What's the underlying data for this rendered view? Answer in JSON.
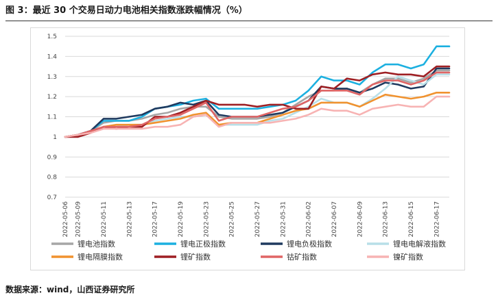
{
  "figure": {
    "title": "图 3：最近 30 个交易日动力电池相关指数涨跌幅情况（%）",
    "source": "数据来源：wind，山西证券研究所"
  },
  "chart_data": {
    "type": "line",
    "title": "",
    "xlabel": "",
    "ylabel": "",
    "ylim": [
      0.7,
      1.5
    ],
    "yticks": [
      "0.7",
      "0.8",
      "0.9",
      "1",
      "1.1",
      "1.2",
      "1.3",
      "1.4",
      "1.5"
    ],
    "grid": true,
    "legend_position": "bottom",
    "x": [
      "2022-05-06",
      "2022-05-09",
      "2022-05-10",
      "2022-05-11",
      "2022-05-12",
      "2022-05-13",
      "2022-05-16",
      "2022-05-17",
      "2022-05-18",
      "2022-05-19",
      "2022-05-20",
      "2022-05-23",
      "2022-05-24",
      "2022-05-25",
      "2022-05-26",
      "2022-05-27",
      "2022-05-30",
      "2022-05-31",
      "2022-06-01",
      "2022-06-02",
      "2022-06-06",
      "2022-06-07",
      "2022-06-08",
      "2022-06-09",
      "2022-06-10",
      "2022-06-13",
      "2022-06-14",
      "2022-06-15",
      "2022-06-16",
      "2022-06-17",
      "2022-06-20"
    ],
    "x_tick_labels": [
      "2022-05-06",
      "2022-05-09",
      "2022-05-11",
      "2022-05-13",
      "2022-05-17",
      "2022-05-19",
      "2022-05-23",
      "2022-05-25",
      "2022-05-27",
      "2022-05-31",
      "2022-06-02",
      "2022-06-07",
      "2022-06-09",
      "2022-06-13",
      "2022-06-15",
      "2022-06-17"
    ],
    "series": [
      {
        "name": "锂电池指数",
        "color": "#a6a6a6",
        "values": [
          1.0,
          1.01,
          1.03,
          1.07,
          1.08,
          1.08,
          1.09,
          1.11,
          1.12,
          1.14,
          1.15,
          1.15,
          1.1,
          1.09,
          1.09,
          1.09,
          1.1,
          1.12,
          1.16,
          1.2,
          1.23,
          1.23,
          1.24,
          1.22,
          1.26,
          1.29,
          1.29,
          1.27,
          1.29,
          1.33,
          1.33
        ]
      },
      {
        "name": "锂电正极指数",
        "color": "#1cb0e0",
        "values": [
          1.0,
          1.01,
          1.03,
          1.08,
          1.08,
          1.08,
          1.1,
          1.14,
          1.15,
          1.16,
          1.18,
          1.19,
          1.14,
          1.14,
          1.14,
          1.14,
          1.15,
          1.16,
          1.18,
          1.23,
          1.3,
          1.28,
          1.28,
          1.26,
          1.32,
          1.36,
          1.36,
          1.34,
          1.36,
          1.45,
          1.45
        ]
      },
      {
        "name": "锂电负极指数",
        "color": "#1f3a5f",
        "values": [
          1.0,
          1.01,
          1.03,
          1.09,
          1.09,
          1.1,
          1.11,
          1.14,
          1.15,
          1.17,
          1.16,
          1.18,
          1.11,
          1.1,
          1.1,
          1.1,
          1.11,
          1.12,
          1.15,
          1.18,
          1.25,
          1.24,
          1.24,
          1.22,
          1.24,
          1.27,
          1.26,
          1.24,
          1.25,
          1.34,
          1.34
        ]
      },
      {
        "name": "锂电电解液指数",
        "color": "#b8dfe8",
        "values": [
          1.0,
          1.01,
          1.02,
          1.05,
          1.05,
          1.06,
          1.06,
          1.08,
          1.09,
          1.1,
          1.1,
          1.11,
          1.06,
          1.06,
          1.06,
          1.06,
          1.08,
          1.09,
          1.12,
          1.15,
          1.19,
          1.17,
          1.17,
          1.15,
          1.19,
          1.24,
          1.3,
          1.28,
          1.26,
          1.31,
          1.31
        ]
      },
      {
        "name": "锂电隔膜指数",
        "color": "#f0922f",
        "values": [
          1.0,
          1.01,
          1.02,
          1.05,
          1.06,
          1.06,
          1.06,
          1.07,
          1.08,
          1.09,
          1.11,
          1.12,
          1.06,
          1.07,
          1.07,
          1.07,
          1.09,
          1.11,
          1.13,
          1.14,
          1.17,
          1.17,
          1.17,
          1.15,
          1.18,
          1.21,
          1.2,
          1.19,
          1.2,
          1.22,
          1.22
        ]
      },
      {
        "name": "锂矿指数",
        "color": "#9e1f23",
        "values": [
          1.0,
          1.0,
          1.02,
          1.05,
          1.04,
          1.05,
          1.05,
          1.1,
          1.1,
          1.12,
          1.15,
          1.18,
          1.16,
          1.16,
          1.16,
          1.15,
          1.16,
          1.16,
          1.14,
          1.14,
          1.25,
          1.24,
          1.29,
          1.28,
          1.31,
          1.32,
          1.31,
          1.31,
          1.3,
          1.35,
          1.35
        ]
      },
      {
        "name": "钴矿指数",
        "color": "#e06565",
        "values": [
          1.0,
          1.01,
          1.03,
          1.05,
          1.05,
          1.05,
          1.06,
          1.09,
          1.1,
          1.11,
          1.14,
          1.17,
          1.08,
          1.1,
          1.1,
          1.1,
          1.12,
          1.14,
          1.15,
          1.18,
          1.23,
          1.23,
          1.23,
          1.21,
          1.26,
          1.28,
          1.28,
          1.26,
          1.28,
          1.32,
          1.32
        ]
      },
      {
        "name": "镍矿指数",
        "color": "#f7b3b3",
        "values": [
          1.0,
          1.01,
          1.02,
          1.04,
          1.04,
          1.04,
          1.04,
          1.05,
          1.05,
          1.06,
          1.1,
          1.11,
          1.05,
          1.07,
          1.07,
          1.07,
          1.07,
          1.08,
          1.09,
          1.11,
          1.14,
          1.13,
          1.13,
          1.11,
          1.14,
          1.15,
          1.16,
          1.15,
          1.15,
          1.2,
          1.2
        ]
      }
    ]
  }
}
